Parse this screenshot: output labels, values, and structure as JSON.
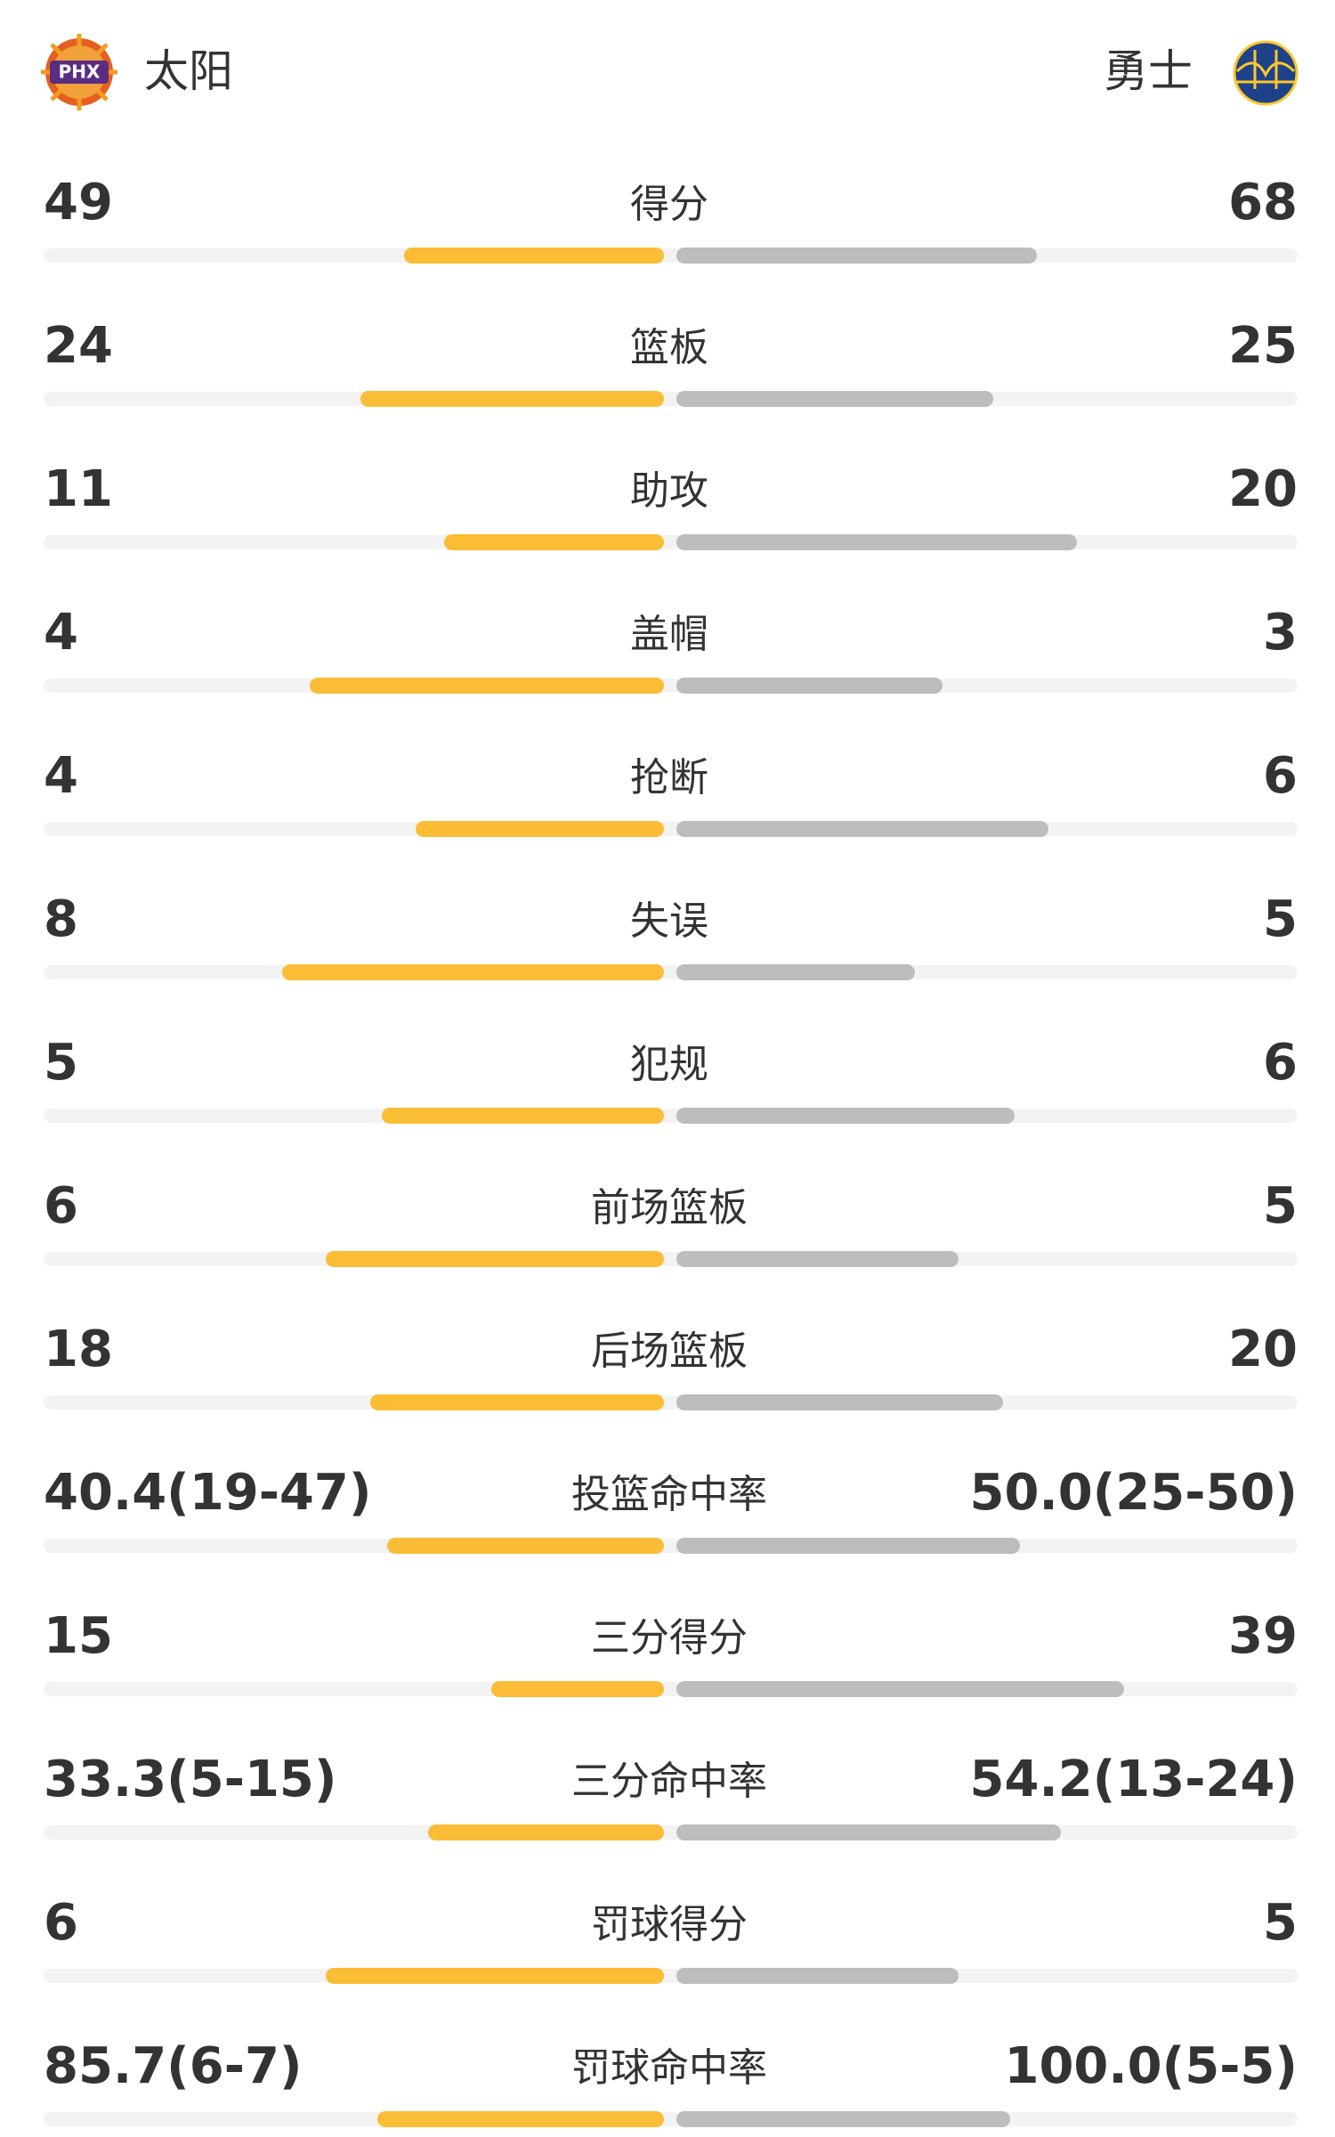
{
  "header": {
    "home": {
      "name": "太阳",
      "logo_text": "PHX"
    },
    "away": {
      "name": "勇士"
    }
  },
  "stats": [
    {
      "label": "得分",
      "home": 49,
      "away": 68
    },
    {
      "label": "篮板",
      "home": 24,
      "away": 25
    },
    {
      "label": "助攻",
      "home": 11,
      "away": 20
    },
    {
      "label": "盖帽",
      "home": 4,
      "away": 3
    },
    {
      "label": "抢断",
      "home": 4,
      "away": 6
    },
    {
      "label": "失误",
      "home": 8,
      "away": 5
    },
    {
      "label": "犯规",
      "home": 5,
      "away": 6
    },
    {
      "label": "前场篮板",
      "home": 6,
      "away": 5
    },
    {
      "label": "后场篮板",
      "home": 18,
      "away": 20
    },
    {
      "label": "投篮命中率",
      "home": {
        "value": 40.4,
        "label": "40.4(19-47)"
      },
      "away": {
        "value": 50.0,
        "label": "50.0(25-50)"
      }
    },
    {
      "label": "三分得分",
      "home": 15,
      "away": 39
    },
    {
      "label": "三分命中率",
      "home": {
        "value": 33.3,
        "label": "33.3(5-15)"
      },
      "away": {
        "value": 54.2,
        "label": "54.2(13-24)"
      }
    },
    {
      "label": "罚球得分",
      "home": 6,
      "away": 5
    },
    {
      "label": "罚球命中率",
      "home": {
        "value": 85.7,
        "label": "85.7(6-7)"
      },
      "away": {
        "value": 100.0,
        "label": "100.0(5-5)"
      }
    }
  ]
}
